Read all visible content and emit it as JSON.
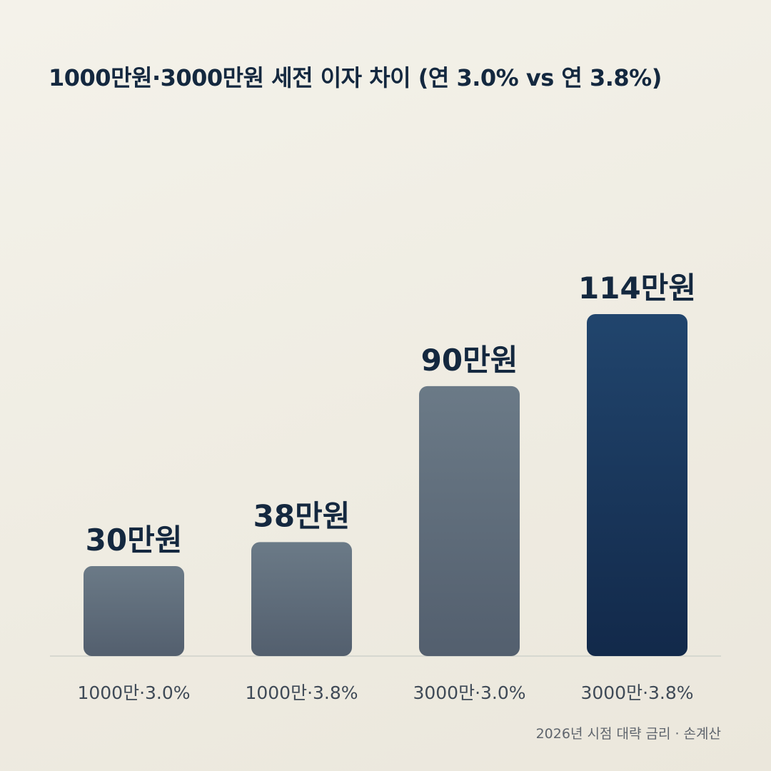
{
  "chart_data": {
    "type": "bar",
    "title": "1000만원·3000만원 세전 이자 차이 (연 3.0% vs 연 3.8%)",
    "categories": [
      "1000만·3.0%",
      "1000만·3.8%",
      "3000만·3.0%",
      "3000만·3.8%"
    ],
    "values": [
      30,
      38,
      90,
      114
    ],
    "value_labels": [
      "30만원",
      "38만원",
      "90만원",
      "114만원"
    ],
    "xlabel": "",
    "ylabel": "",
    "ylim": [
      0,
      114
    ],
    "grid": false,
    "legend": "none",
    "highlight_index": 3,
    "colors": {
      "muted_top": "#6b7a87",
      "muted_bottom": "#535f6e",
      "highlight_top": "#21456d",
      "highlight_bottom": "#12294a",
      "baseline": "#cfd2cb",
      "text_dark": "#14283f",
      "text_tick": "#3f4a57"
    }
  },
  "footnote": "2026년 시점 대략 금리 · 손계산"
}
